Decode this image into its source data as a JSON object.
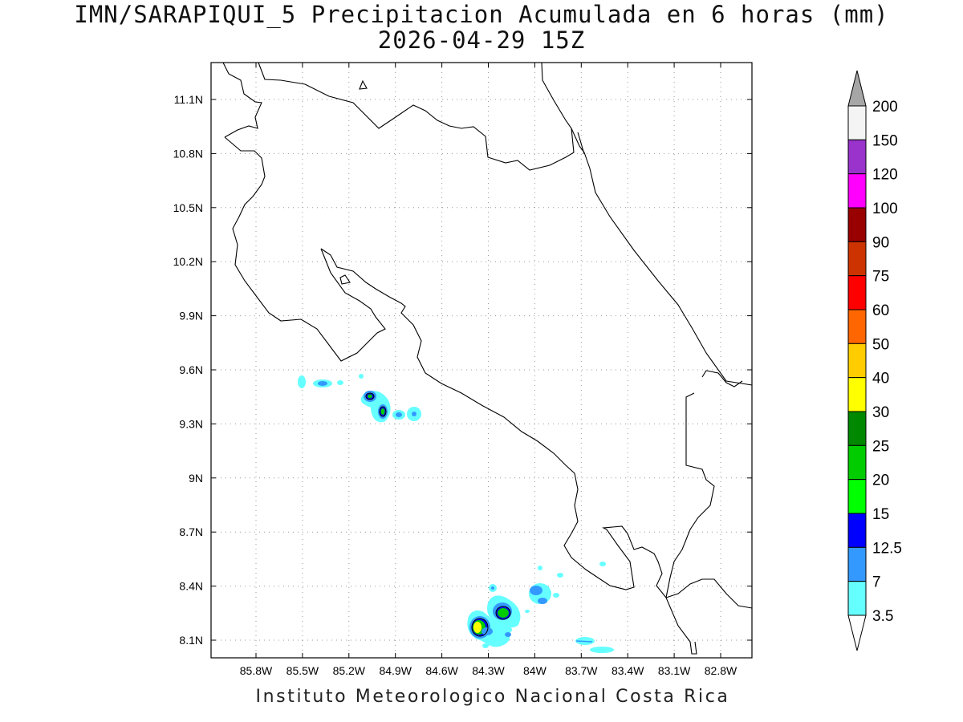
{
  "title": {
    "line1": "IMN/SARAPIQUI_5 Precipitacion Acumulada en 6 horas (mm)",
    "line2": "2026-04-29 15Z"
  },
  "footer": "Instituto Meteorologico Nacional Costa Rica",
  "map": {
    "lat_ticks": [
      "11.1N",
      "10.8N",
      "10.5N",
      "10.2N",
      "9.9N",
      "9.6N",
      "9.3N",
      "9N",
      "8.7N",
      "8.4N",
      "8.1N"
    ],
    "lon_ticks": [
      "85.8W",
      "85.5W",
      "85.2W",
      "84.9W",
      "84.6W",
      "84.3W",
      "84W",
      "83.7W",
      "83.4W",
      "83.1W",
      "82.8W"
    ],
    "lat_values": [
      11.1,
      10.8,
      10.5,
      10.2,
      9.9,
      9.6,
      9.3,
      9.0,
      8.7,
      8.4,
      8.1
    ],
    "lon_values": [
      -85.8,
      -85.5,
      -85.2,
      -84.9,
      -84.6,
      -84.3,
      -84.0,
      -83.7,
      -83.4,
      -83.1,
      -82.8
    ],
    "grid": true
  },
  "colorbar": {
    "labels": [
      "200",
      "150",
      "120",
      "100",
      "90",
      "75",
      "60",
      "50",
      "40",
      "30",
      "25",
      "20",
      "15",
      "12.5",
      "7",
      "3.5"
    ],
    "colors": [
      "#f4f4f4",
      "#9933cc",
      "#ff00ff",
      "#990000",
      "#cc3300",
      "#ff0000",
      "#ff6600",
      "#ffcc00",
      "#ffff00",
      "#008800",
      "#00cc00",
      "#00ff00",
      "#0000ff",
      "#3399ff",
      "#66ffff"
    ],
    "over_color": "#a6a6a6",
    "under_color": "#ffffff"
  }
}
